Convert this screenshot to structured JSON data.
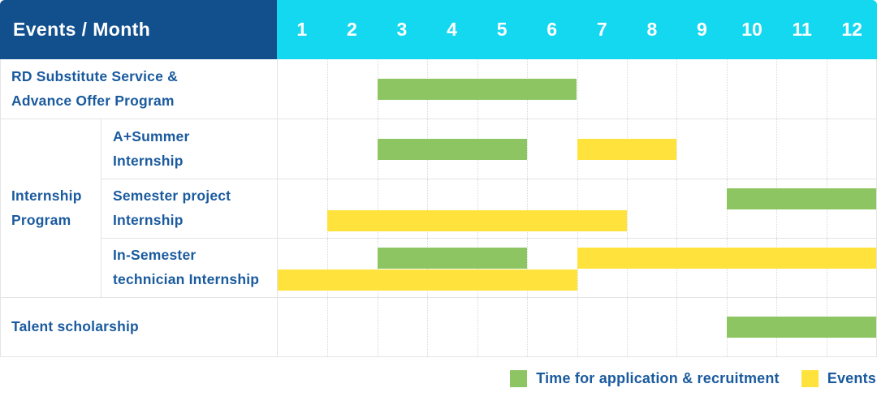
{
  "colors": {
    "header_bg": "#11508D",
    "months_bg": "#14D8F0",
    "header_text": "#FFFFFF",
    "label_text": "#1A5A9E",
    "application_bar": "#8CC562",
    "event_bar": "#FFE33C",
    "row_border": "#E4E4E4",
    "gridline": "#D8D8D8"
  },
  "header": {
    "title": "Events / Month",
    "months": [
      "1",
      "2",
      "3",
      "4",
      "5",
      "6",
      "7",
      "8",
      "9",
      "10",
      "11",
      "12"
    ]
  },
  "legend": {
    "items": [
      {
        "type": "application",
        "label": "Time for application & recruitment"
      },
      {
        "type": "event",
        "label": "Events"
      }
    ]
  },
  "chart_data": {
    "type": "gantt",
    "title": "Events / Month",
    "x_axis_label": "Month",
    "x_ticks": [
      1,
      2,
      3,
      4,
      5,
      6,
      7,
      8,
      9,
      10,
      11,
      12
    ],
    "x_range_months": [
      1,
      12
    ],
    "grid": true,
    "legend_position": "bottom-right",
    "bar_types": {
      "application": "Time for application & recruitment",
      "event": "Events"
    },
    "rows": [
      {
        "group": "",
        "label": "RD Substitute Service & Advance Offer Program",
        "label_lines": [
          "RD Substitute Service &",
          "Advance Offer Program"
        ],
        "bars": [
          {
            "type": "application",
            "start_month": 3,
            "end_month": 6,
            "lane": "center"
          }
        ]
      },
      {
        "group": "Internship Program",
        "label": "A+Summer Internship",
        "label_lines": [
          "A+Summer",
          "Internship"
        ],
        "bars": [
          {
            "type": "application",
            "start_month": 3,
            "end_month": 5,
            "lane": "center"
          },
          {
            "type": "event",
            "start_month": 7,
            "end_month": 8,
            "lane": "center"
          }
        ]
      },
      {
        "group": "Internship Program",
        "label": "Semester project Internship",
        "label_lines": [
          "Semester project",
          "Internship"
        ],
        "bars": [
          {
            "type": "application",
            "start_month": 10,
            "end_month": 12,
            "lane": "top"
          },
          {
            "type": "event",
            "start_month": 2,
            "end_month": 7,
            "lane": "bottom"
          }
        ]
      },
      {
        "group": "Internship Program",
        "label": "In-Semester technician Internship",
        "label_lines": [
          "In-Semester",
          "technician Internship"
        ],
        "bars": [
          {
            "type": "application",
            "start_month": 3,
            "end_month": 5,
            "lane": "top"
          },
          {
            "type": "event",
            "start_month": 7,
            "end_month": 12,
            "lane": "top"
          },
          {
            "type": "event",
            "start_month": 1,
            "end_month": 6,
            "lane": "bottom"
          }
        ]
      },
      {
        "group": "",
        "label": "Talent scholarship",
        "label_lines": [
          "Talent scholarship"
        ],
        "bars": [
          {
            "type": "application",
            "start_month": 10,
            "end_month": 12,
            "lane": "center"
          }
        ]
      }
    ],
    "group_label_lines": {
      "Internship Program": [
        "Internship",
        "Program"
      ]
    }
  }
}
